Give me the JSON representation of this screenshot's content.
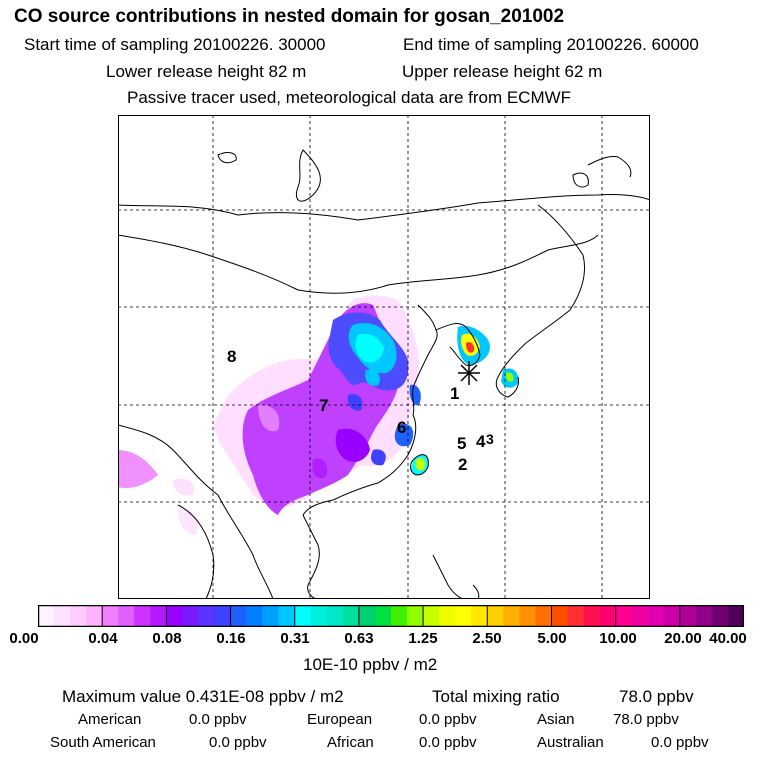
{
  "header": {
    "title": "CO  source contributions in nested domain for gosan_201002",
    "start_label": "Start time of sampling 20100226. 30000",
    "end_label": "End time of sampling 20100226. 60000",
    "lower_label": "Lower release height   82 m",
    "upper_label": "Upper release height   62 m",
    "note": "Passive tracer used, meteorological data are from ECMWF"
  },
  "map": {
    "region_labels": [
      "1",
      "2",
      "3",
      "4",
      "5",
      "6",
      "7",
      "8"
    ],
    "receptor": "gosan"
  },
  "colorbar": {
    "tick_labels": [
      "0.00",
      "0.04",
      "0.08",
      "0.16",
      "0.31",
      "0.63",
      "1.25",
      "2.50",
      "5.00",
      "10.00",
      "20.00",
      "40.00"
    ],
    "unit": "10E-10 ppbv / m2",
    "colors": [
      [
        "#fff2ff",
        "#ffe0ff",
        "#ffccff",
        "#ffb3ff"
      ],
      [
        "#f080ff",
        "#e060ff",
        "#cc33ff",
        "#b31aff"
      ],
      [
        "#9900ff",
        "#7a1aff",
        "#5c33ff",
        "#4040ff"
      ],
      [
        "#2060ff",
        "#0080ff",
        "#00a0ff",
        "#00c8ff"
      ],
      [
        "#00ffff",
        "#00f0e0",
        "#00e8c8",
        "#00e0a0"
      ],
      [
        "#00d070",
        "#00e040",
        "#40f000",
        "#90ff00"
      ],
      [
        "#c8ff00",
        "#f0ff00",
        "#ffff00",
        "#ffe800"
      ],
      [
        "#ffd000",
        "#ffb000",
        "#ff9000",
        "#ff7000"
      ],
      [
        "#ff5000",
        "#ff3030",
        "#ff1050",
        "#ff0070"
      ],
      [
        "#ff0090",
        "#f000a0",
        "#e000b0",
        "#cc00aa"
      ],
      [
        "#b0009a",
        "#900088",
        "#700070",
        "#500058"
      ]
    ]
  },
  "summary": {
    "max_value": "Maximum value  0.431E-08 ppbv / m2",
    "total_mixing": "Total mixing ratio",
    "total_value": "78.0 ppbv"
  },
  "regions": {
    "american_name": "American",
    "american_value": "0.0 ppbv",
    "european_name": "European",
    "european_value": "0.0 ppbv",
    "asian_name": "Asian",
    "asian_value": "78.0 ppbv",
    "south_american_name": "South American",
    "south_american_value": "0.0 ppbv",
    "african_name": "African",
    "african_value": "0.0 ppbv",
    "australian_name": "Australian",
    "australian_value": "0.0 ppbv"
  }
}
